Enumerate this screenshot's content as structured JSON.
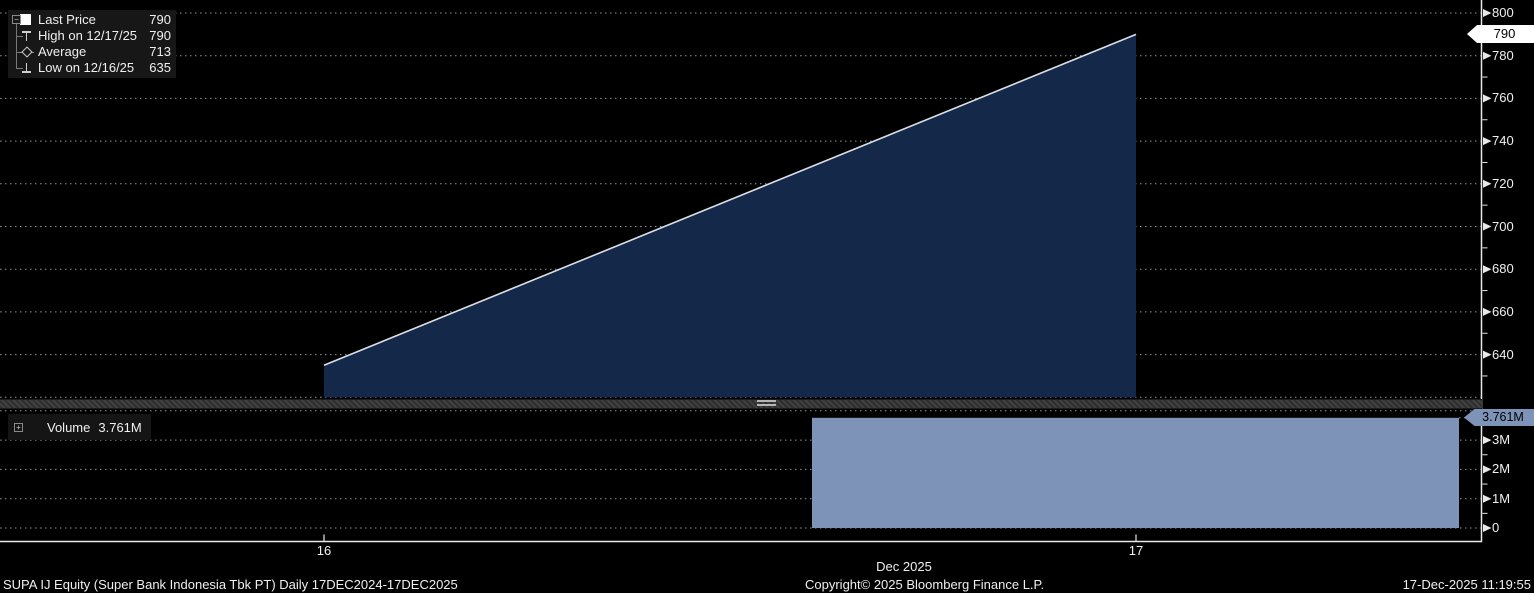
{
  "colors": {
    "background": "#000000",
    "area_fill": "#14294a",
    "price_line": "#dcdfe4",
    "volume_bar": "#7d93b8",
    "grid": "#8b95a1",
    "axis": "#e8e8e8",
    "price_tag_bg": "#ffffff",
    "volume_tag_bg": "#7d93b8"
  },
  "price_legend": {
    "expander_glyph": "−",
    "rows": [
      {
        "icon": "last-price-square-marker",
        "label": "Last Price",
        "value": "790"
      },
      {
        "icon": "high-whisker-marker",
        "label": "High on 12/17/25",
        "value": "790"
      },
      {
        "icon": "average-diamond-marker",
        "label": "Average",
        "value": "713"
      },
      {
        "icon": "low-whisker-marker",
        "label": "Low on 12/16/25",
        "value": "635"
      }
    ]
  },
  "volume_legend": {
    "expander_glyph": "+",
    "label": "Volume",
    "value": "3.761M"
  },
  "price_axis": {
    "tick_labels": [
      800,
      780,
      760,
      740,
      720,
      700,
      680,
      660,
      640
    ],
    "last_price_tag": "790"
  },
  "volume_axis": {
    "tick_labels": [
      "3M",
      "2M",
      "1M",
      "0"
    ],
    "last_volume_tag": "3.761M"
  },
  "x_axis": {
    "tick_labels": [
      "16",
      "17"
    ],
    "month_label": "Dec 2025"
  },
  "footer": {
    "left": "SUPA IJ Equity (Super Bank Indonesia Tbk PT) Daily 17DEC2024-17DEC2025",
    "center": "Copyright© 2025 Bloomberg Finance L.P.",
    "right": "17-Dec-2025 11:19:55"
  },
  "chart_data": [
    {
      "type": "area",
      "title": "SUPA IJ Equity Last Price",
      "x": [
        "2025-12-16",
        "2025-12-17"
      ],
      "values": [
        635,
        790
      ],
      "ylim": [
        620,
        800
      ],
      "y_ticks": [
        800,
        780,
        760,
        740,
        720,
        700,
        680,
        660,
        640
      ],
      "grid": true,
      "legend_position": "top-left",
      "annotations": {
        "last_price": 790,
        "high": {
          "date": "12/17/25",
          "value": 790
        },
        "average": 713,
        "low": {
          "date": "12/16/25",
          "value": 635
        }
      }
    },
    {
      "type": "bar",
      "title": "Volume",
      "x": [
        "2025-12-17"
      ],
      "values": [
        3761000
      ],
      "ylim": [
        0,
        4000000
      ],
      "y_ticks": [
        "3M",
        "2M",
        "1M",
        "0"
      ],
      "last_value_label": "3.761M",
      "grid": true,
      "legend_position": "top-left"
    }
  ]
}
